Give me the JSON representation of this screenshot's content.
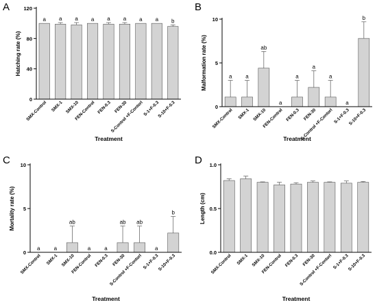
{
  "figure": {
    "background": "#ffffff",
    "bar_fill": "#d3d3d3",
    "bar_stroke": "#555555",
    "axis_color": "#000000"
  },
  "chart_data": [
    {
      "panel": "A",
      "type": "bar",
      "ylabel": "Hatching rate (%)",
      "xlabel": "Treatment",
      "ylim": [
        0,
        120
      ],
      "yticks": [
        "0",
        "40",
        "80",
        "120"
      ],
      "categories": [
        "SMX-Control",
        "SMX-1",
        "SMX-10",
        "FEN-Control",
        "FEN-0.3",
        "FEN-30",
        "S-Control +F-Contorl",
        "S-1+F-0.3",
        "S-10+F-0.3"
      ],
      "values": [
        100,
        99,
        98,
        100,
        99,
        99,
        100,
        100,
        96
      ],
      "errors": [
        0,
        2,
        3,
        0,
        2,
        2,
        0,
        0,
        2
      ],
      "letters": [
        "a",
        "a",
        "a",
        "a",
        "a",
        "a",
        "a",
        "a",
        "b"
      ]
    },
    {
      "panel": "B",
      "type": "bar",
      "ylabel": "Malformation rate (%)",
      "xlabel": "Treatment",
      "ylim": [
        0,
        10
      ],
      "yticks": [
        "0",
        "5",
        "10"
      ],
      "categories": [
        "SMX-Control",
        "SMX-1",
        "SMX-10",
        "FEN-Control",
        "FEN-0.3",
        "FEN-30",
        "S-Control +F-Contorl",
        "S-1+F-0.3",
        "S-10+F-0.3"
      ],
      "values": [
        1.1,
        1.1,
        4.4,
        0,
        1.1,
        2.2,
        1.1,
        0,
        7.8
      ],
      "errors": [
        1.9,
        1.9,
        1.9,
        0,
        1.9,
        1.9,
        1.9,
        0,
        1.9
      ],
      "letters": [
        "a",
        "a",
        "ab",
        "a",
        "a",
        "a",
        "a",
        "a",
        "b"
      ]
    },
    {
      "panel": "C",
      "type": "bar",
      "ylabel": "Mortality rate (%)",
      "xlabel": "Treatment",
      "ylim": [
        0,
        10
      ],
      "yticks": [
        "0",
        "5",
        "10"
      ],
      "categories": [
        "SMX-Control",
        "SMX-1",
        "SMX-10",
        "FEN-Control",
        "FEN-0.3",
        "FEN-30",
        "S-Control +F-Contorl",
        "S-1+F-0.3",
        "S-10+F-0.3"
      ],
      "values": [
        0,
        0,
        1.1,
        0,
        0,
        1.1,
        1.1,
        0,
        2.2
      ],
      "errors": [
        0,
        0,
        1.9,
        0,
        0,
        1.9,
        1.9,
        0,
        1.9
      ],
      "letters": [
        "a",
        "a",
        "ab",
        "a",
        "a",
        "ab",
        "ab",
        "a",
        "b"
      ]
    },
    {
      "panel": "D",
      "type": "bar",
      "ylabel": "Length (cm)",
      "xlabel": "Treatment",
      "ylim": [
        0,
        1.0
      ],
      "yticks": [
        "0.0",
        "0.5",
        "1.0"
      ],
      "categories": [
        "SMX-Control",
        "SMX-1",
        "SMX-10",
        "FEN-Control",
        "FEN-0.3",
        "FEN-30",
        "S-Control +F-Contorl",
        "S-1+F-0.3",
        "S-10+F-0.3"
      ],
      "values": [
        0.82,
        0.84,
        0.8,
        0.77,
        0.78,
        0.8,
        0.8,
        0.79,
        0.8
      ],
      "errors": [
        0.02,
        0.03,
        0.005,
        0.03,
        0.015,
        0.015,
        0.005,
        0.025,
        0.01
      ],
      "letters": [
        "",
        "",
        "",
        "",
        "",
        "",
        "",
        "",
        ""
      ]
    }
  ]
}
